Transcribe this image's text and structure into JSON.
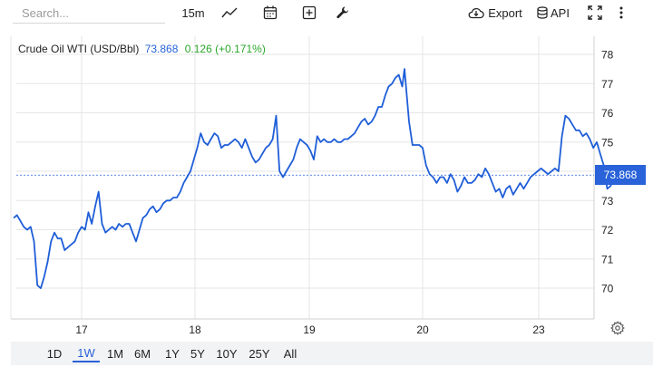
{
  "toolbar": {
    "search_placeholder": "Search...",
    "interval_label": "15m",
    "export_label": "Export",
    "api_label": "API",
    "icons": [
      "line-chart-icon",
      "calendar-icon",
      "plus-icon",
      "wrench-icon",
      "cloud-download-icon",
      "database-icon",
      "fullscreen-icon",
      "more-vertical-icon"
    ]
  },
  "legend": {
    "name": "Crude Oil WTI (USD/Bbl)",
    "price": "73.868",
    "change": "0.126 (+0.171%)"
  },
  "range_bar": {
    "items": [
      "1D",
      "1W",
      "1M",
      "6M",
      "1Y",
      "5Y",
      "10Y",
      "25Y",
      "All"
    ],
    "active": "1W"
  },
  "colors": {
    "line": "#1f5ed8",
    "accent": "#2962d9",
    "change_positive": "#2aa72a",
    "grid": "#e6e6e6"
  },
  "chart_data": {
    "type": "line",
    "x_tick_labels": [
      "17",
      "18",
      "19",
      "20",
      "23"
    ],
    "y_tick_labels": [
      "70",
      "71",
      "72",
      "73",
      "74",
      "75",
      "76",
      "77",
      "78"
    ],
    "ylim": [
      69.2,
      78.4
    ],
    "last_value_label": "73.868",
    "last_value": 73.868,
    "series": [
      {
        "values": [
          [
            16.4,
            72.4
          ],
          [
            16.43,
            72.5
          ],
          [
            16.46,
            72.3
          ],
          [
            16.49,
            72.1
          ],
          [
            16.52,
            72.0
          ],
          [
            16.55,
            72.1
          ],
          [
            16.58,
            71.6
          ],
          [
            16.61,
            70.1
          ],
          [
            16.64,
            70.0
          ],
          [
            16.67,
            70.4
          ],
          [
            16.7,
            70.9
          ],
          [
            16.73,
            71.6
          ],
          [
            16.76,
            71.9
          ],
          [
            16.79,
            71.7
          ],
          [
            16.82,
            71.7
          ],
          [
            16.85,
            71.3
          ],
          [
            16.88,
            71.4
          ],
          [
            16.91,
            71.5
          ],
          [
            16.94,
            71.6
          ],
          [
            16.97,
            71.9
          ],
          [
            17.0,
            72.1
          ],
          [
            17.03,
            72.0
          ],
          [
            17.06,
            72.6
          ],
          [
            17.09,
            72.2
          ],
          [
            17.12,
            72.8
          ],
          [
            17.15,
            73.3
          ],
          [
            17.18,
            72.2
          ],
          [
            17.21,
            71.9
          ],
          [
            17.24,
            72.0
          ],
          [
            17.27,
            72.1
          ],
          [
            17.3,
            72.0
          ],
          [
            17.33,
            72.2
          ],
          [
            17.36,
            72.1
          ],
          [
            17.39,
            72.2
          ],
          [
            17.42,
            72.2
          ],
          [
            17.45,
            71.9
          ],
          [
            17.48,
            71.6
          ],
          [
            17.51,
            72.0
          ],
          [
            17.54,
            72.4
          ],
          [
            17.57,
            72.5
          ],
          [
            17.6,
            72.7
          ],
          [
            17.63,
            72.8
          ],
          [
            17.66,
            72.6
          ],
          [
            17.69,
            72.7
          ],
          [
            17.72,
            72.9
          ],
          [
            17.75,
            73.0
          ],
          [
            17.78,
            73.0
          ],
          [
            17.81,
            73.1
          ],
          [
            17.84,
            73.1
          ],
          [
            17.87,
            73.3
          ],
          [
            17.9,
            73.6
          ],
          [
            17.93,
            73.8
          ],
          [
            17.96,
            74.0
          ],
          [
            17.99,
            74.4
          ],
          [
            18.02,
            74.8
          ],
          [
            18.05,
            75.3
          ],
          [
            18.08,
            75.0
          ],
          [
            18.11,
            74.9
          ],
          [
            18.14,
            75.1
          ],
          [
            18.17,
            75.3
          ],
          [
            18.2,
            75.2
          ],
          [
            18.23,
            74.8
          ],
          [
            18.26,
            74.9
          ],
          [
            18.29,
            74.9
          ],
          [
            18.32,
            75.0
          ],
          [
            18.35,
            75.1
          ],
          [
            18.38,
            75.0
          ],
          [
            18.41,
            74.8
          ],
          [
            18.44,
            75.1
          ],
          [
            18.47,
            74.8
          ],
          [
            18.5,
            74.5
          ],
          [
            18.53,
            74.3
          ],
          [
            18.56,
            74.4
          ],
          [
            18.59,
            74.6
          ],
          [
            18.62,
            74.8
          ],
          [
            18.65,
            74.9
          ],
          [
            18.68,
            75.1
          ],
          [
            18.71,
            75.9
          ],
          [
            18.74,
            74.0
          ],
          [
            18.77,
            73.8
          ],
          [
            18.8,
            74.0
          ],
          [
            18.83,
            74.2
          ],
          [
            18.86,
            74.4
          ],
          [
            18.89,
            74.8
          ],
          [
            18.92,
            75.1
          ],
          [
            18.95,
            75.0
          ],
          [
            18.98,
            74.9
          ],
          [
            19.01,
            74.7
          ],
          [
            19.04,
            74.4
          ],
          [
            19.07,
            75.2
          ],
          [
            19.1,
            75.0
          ],
          [
            19.13,
            75.1
          ],
          [
            19.16,
            75.0
          ],
          [
            19.19,
            75.0
          ],
          [
            19.22,
            75.1
          ],
          [
            19.25,
            75.0
          ],
          [
            19.28,
            75.0
          ],
          [
            19.31,
            75.1
          ],
          [
            19.34,
            75.1
          ],
          [
            19.37,
            75.2
          ],
          [
            19.4,
            75.3
          ],
          [
            19.43,
            75.5
          ],
          [
            19.46,
            75.7
          ],
          [
            19.49,
            75.8
          ],
          [
            19.52,
            75.6
          ],
          [
            19.55,
            75.7
          ],
          [
            19.58,
            75.9
          ],
          [
            19.61,
            76.2
          ],
          [
            19.64,
            76.2
          ],
          [
            19.67,
            76.6
          ],
          [
            19.7,
            76.9
          ],
          [
            19.73,
            77.0
          ],
          [
            19.76,
            77.2
          ],
          [
            19.79,
            77.3
          ],
          [
            19.82,
            76.9
          ],
          [
            19.84,
            77.5
          ],
          [
            19.86,
            76.6
          ],
          [
            19.88,
            75.7
          ],
          [
            19.91,
            74.9
          ],
          [
            19.94,
            74.9
          ],
          [
            19.97,
            74.9
          ],
          [
            20.0,
            74.8
          ],
          [
            20.03,
            74.2
          ],
          [
            20.06,
            73.9
          ],
          [
            20.09,
            73.8
          ],
          [
            20.12,
            73.6
          ],
          [
            20.15,
            73.8
          ],
          [
            20.18,
            73.8
          ],
          [
            20.21,
            73.6
          ],
          [
            20.24,
            73.9
          ],
          [
            20.27,
            73.7
          ],
          [
            20.3,
            73.3
          ],
          [
            20.33,
            73.5
          ],
          [
            20.36,
            73.8
          ],
          [
            20.39,
            73.6
          ],
          [
            20.42,
            73.6
          ],
          [
            20.45,
            73.7
          ],
          [
            20.48,
            73.9
          ],
          [
            20.51,
            73.8
          ],
          [
            20.54,
            74.1
          ],
          [
            20.57,
            73.9
          ],
          [
            20.6,
            73.6
          ],
          [
            20.63,
            73.3
          ],
          [
            20.66,
            73.4
          ],
          [
            20.69,
            73.1
          ],
          [
            20.72,
            73.4
          ],
          [
            20.75,
            73.5
          ],
          [
            20.78,
            73.2
          ],
          [
            20.81,
            73.4
          ],
          [
            20.84,
            73.6
          ],
          [
            20.87,
            73.4
          ],
          [
            20.9,
            73.6
          ],
          [
            20.93,
            73.8
          ],
          [
            20.96,
            73.9
          ],
          [
            20.99,
            74.0
          ],
          [
            21.02,
            74.1
          ],
          [
            21.05,
            74.0
          ],
          [
            21.08,
            73.9
          ],
          [
            21.11,
            74.0
          ],
          [
            21.14,
            74.1
          ],
          [
            21.17,
            74.0
          ],
          [
            21.2,
            75.2
          ],
          [
            21.23,
            75.9
          ],
          [
            21.26,
            75.8
          ],
          [
            21.29,
            75.6
          ],
          [
            21.32,
            75.4
          ],
          [
            21.35,
            75.4
          ],
          [
            21.38,
            75.2
          ],
          [
            21.41,
            75.3
          ],
          [
            21.44,
            75.1
          ],
          [
            21.47,
            74.8
          ],
          [
            21.5,
            75.0
          ],
          [
            21.53,
            74.6
          ],
          [
            21.56,
            74.2
          ],
          [
            21.59,
            73.4
          ],
          [
            21.62,
            73.5
          ],
          [
            21.65,
            73.9
          ]
        ]
      }
    ]
  }
}
